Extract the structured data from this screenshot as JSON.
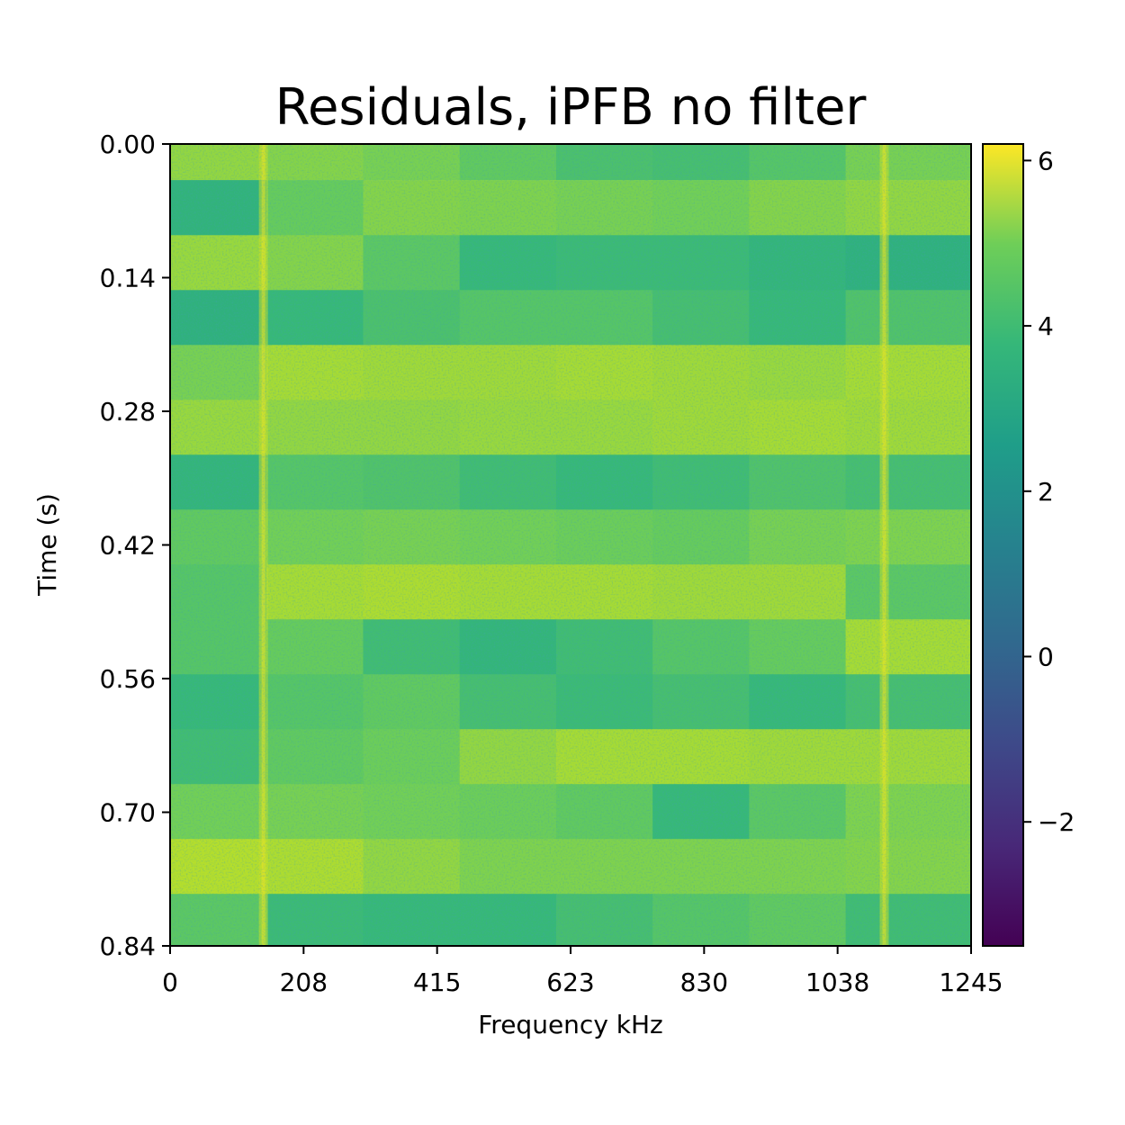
{
  "chart_data": {
    "type": "heatmap",
    "title": "Residuals, iPFB no filter",
    "xlabel": "Frequency kHz",
    "ylabel": "Time (s)",
    "xlim": [
      0,
      1245
    ],
    "ylim": [
      0,
      0.84
    ],
    "y_axis_inverted": true,
    "x_ticks": [
      "0",
      "208",
      "415",
      "623",
      "830",
      "1038",
      "1245"
    ],
    "y_ticks": [
      "0.00",
      "0.14",
      "0.28",
      "0.42",
      "0.56",
      "0.70",
      "0.84"
    ],
    "colorbar": {
      "colormap": "viridis",
      "range": [
        -3.5,
        6.2
      ],
      "ticks": [
        "−2",
        "0",
        "2",
        "4",
        "6"
      ],
      "tick_values": [
        -2,
        0,
        2,
        4,
        6
      ]
    },
    "time_bands_s": [
      0.0,
      0.0378,
      0.0955,
      0.153,
      0.2105,
      0.268,
      0.3255,
      0.383,
      0.4405,
      0.498,
      0.5555,
      0.613,
      0.6705,
      0.728,
      0.7855,
      0.84
    ],
    "freq_columns_khz": [
      0,
      150,
      300,
      450,
      600,
      750,
      900,
      1050,
      1245
    ],
    "band_values": [
      [
        4.6,
        4.4,
        4.2,
        3.8,
        3.4,
        3.3,
        3.6,
        4.2
      ],
      [
        2.8,
        3.9,
        4.4,
        4.3,
        4.2,
        4.1,
        4.4,
        4.6
      ],
      [
        4.7,
        4.4,
        3.7,
        3.0,
        3.1,
        3.1,
        2.9,
        2.7
      ],
      [
        2.7,
        3.0,
        3.4,
        3.6,
        3.6,
        3.3,
        3.0,
        3.5
      ],
      [
        4.2,
        4.9,
        4.8,
        4.8,
        4.9,
        4.8,
        4.7,
        4.9
      ],
      [
        4.7,
        4.6,
        4.6,
        4.7,
        4.7,
        4.8,
        4.9,
        4.8
      ],
      [
        2.9,
        3.6,
        3.5,
        3.2,
        3.0,
        3.2,
        3.5,
        3.3
      ],
      [
        3.8,
        4.1,
        4.2,
        4.1,
        4.0,
        3.9,
        4.2,
        4.3
      ],
      [
        3.6,
        4.9,
        5.0,
        4.9,
        4.9,
        4.8,
        4.8,
        3.7
      ],
      [
        3.6,
        3.9,
        3.2,
        2.9,
        3.2,
        3.6,
        3.9,
        4.9
      ],
      [
        3.0,
        3.6,
        3.8,
        3.3,
        3.1,
        3.3,
        3.0,
        3.3
      ],
      [
        3.2,
        3.8,
        4.0,
        4.6,
        4.9,
        4.9,
        4.8,
        4.8
      ],
      [
        4.1,
        4.2,
        4.1,
        4.0,
        3.8,
        3.0,
        3.7,
        4.3
      ],
      [
        5.1,
        5.0,
        4.6,
        4.3,
        4.3,
        4.3,
        4.3,
        4.4
      ],
      [
        3.7,
        3.1,
        3.0,
        3.0,
        3.3,
        3.6,
        3.8,
        3.2
      ]
    ],
    "bright_lines_khz": [
      145,
      1110
    ]
  }
}
